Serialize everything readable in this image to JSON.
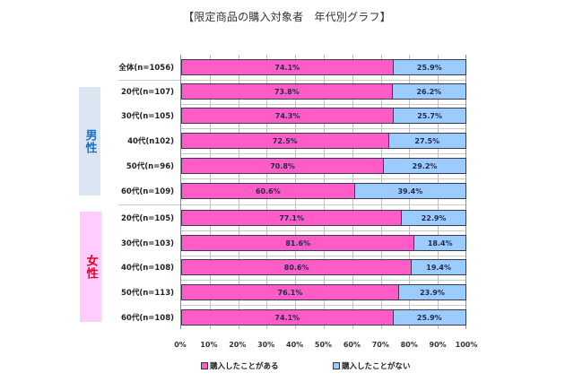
{
  "title": "【限定商品の購入対象者　年代別グラフ】",
  "colors": {
    "purchased": "#ff5cc8",
    "not_purchased": "#9ccbff",
    "male_block": "#dce6f2",
    "male_text": "#1f6fbf",
    "female_block": "#ffccff",
    "female_text": "#e6001e"
  },
  "groups": {
    "male": {
      "label": "男性"
    },
    "female": {
      "label": "女性"
    }
  },
  "rows": [
    {
      "label": "全体(n=1056)",
      "a": 74.1,
      "b": 25.9,
      "a_text": "74.1%",
      "b_text": "25.9%"
    },
    {
      "label": "20代(n=107)",
      "a": 73.8,
      "b": 26.2,
      "a_text": "73.8%",
      "b_text": "26.2%"
    },
    {
      "label": "30代(n=105)",
      "a": 74.3,
      "b": 25.7,
      "a_text": "74.3%",
      "b_text": "25.7%"
    },
    {
      "label": "40代(n102)",
      "a": 72.5,
      "b": 27.5,
      "a_text": "72.5%",
      "b_text": "27.5%"
    },
    {
      "label": "50代(n=96)",
      "a": 70.8,
      "b": 29.2,
      "a_text": "70.8%",
      "b_text": "29.2%"
    },
    {
      "label": "60代(n=109)",
      "a": 60.6,
      "b": 39.4,
      "a_text": "60.6%",
      "b_text": "39.4%"
    },
    {
      "label": "20代(n=105)",
      "a": 77.1,
      "b": 22.9,
      "a_text": "77.1%",
      "b_text": "22.9%"
    },
    {
      "label": "30代(n=103)",
      "a": 81.6,
      "b": 18.4,
      "a_text": "81.6%",
      "b_text": "18.4%"
    },
    {
      "label": "40代(n=108)",
      "a": 80.6,
      "b": 19.4,
      "a_text": "80.6%",
      "b_text": "19.4%"
    },
    {
      "label": "50代(n=113)",
      "a": 76.1,
      "b": 23.9,
      "a_text": "76.1%",
      "b_text": "23.9%"
    },
    {
      "label": "60代(n=108)",
      "a": 74.1,
      "b": 25.9,
      "a_text": "74.1%",
      "b_text": "25.9%"
    }
  ],
  "xticks": [
    "0%",
    "10%",
    "20%",
    "30%",
    "40%",
    "50%",
    "60%",
    "70%",
    "80%",
    "90%",
    "100%"
  ],
  "legend": {
    "purchased": "購入したことがある",
    "not_purchased": "購入したことがない"
  },
  "chart_data": {
    "type": "bar",
    "orientation": "horizontal",
    "stacked": "percent",
    "title": "【限定商品の購入対象者　年代別グラフ】",
    "categories": [
      "全体(n=1056)",
      "男性 20代(n=107)",
      "男性 30代(n=105)",
      "男性 40代(n102)",
      "男性 50代(n=96)",
      "男性 60代(n=109)",
      "女性 20代(n=105)",
      "女性 30代(n=103)",
      "女性 40代(n=108)",
      "女性 50代(n=113)",
      "女性 60代(n=108)"
    ],
    "series": [
      {
        "name": "購入したことがある",
        "color": "#ff5cc8",
        "values": [
          74.1,
          73.8,
          74.3,
          72.5,
          70.8,
          60.6,
          77.1,
          81.6,
          80.6,
          76.1,
          74.1
        ]
      },
      {
        "name": "購入したことがない",
        "color": "#9ccbff",
        "values": [
          25.9,
          26.2,
          25.7,
          27.5,
          29.2,
          39.4,
          22.9,
          18.4,
          19.4,
          23.9,
          25.9
        ]
      }
    ],
    "group_labels": [
      {
        "label": "男性",
        "rows": [
          1,
          5
        ]
      },
      {
        "label": "女性",
        "rows": [
          6,
          10
        ]
      }
    ],
    "xlabel": "",
    "ylabel": "",
    "xlim": [
      0,
      100
    ],
    "xticks": [
      "0%",
      "10%",
      "20%",
      "30%",
      "40%",
      "50%",
      "60%",
      "70%",
      "80%",
      "90%",
      "100%"
    ],
    "grid": "vertical",
    "legend_position": "bottom"
  }
}
